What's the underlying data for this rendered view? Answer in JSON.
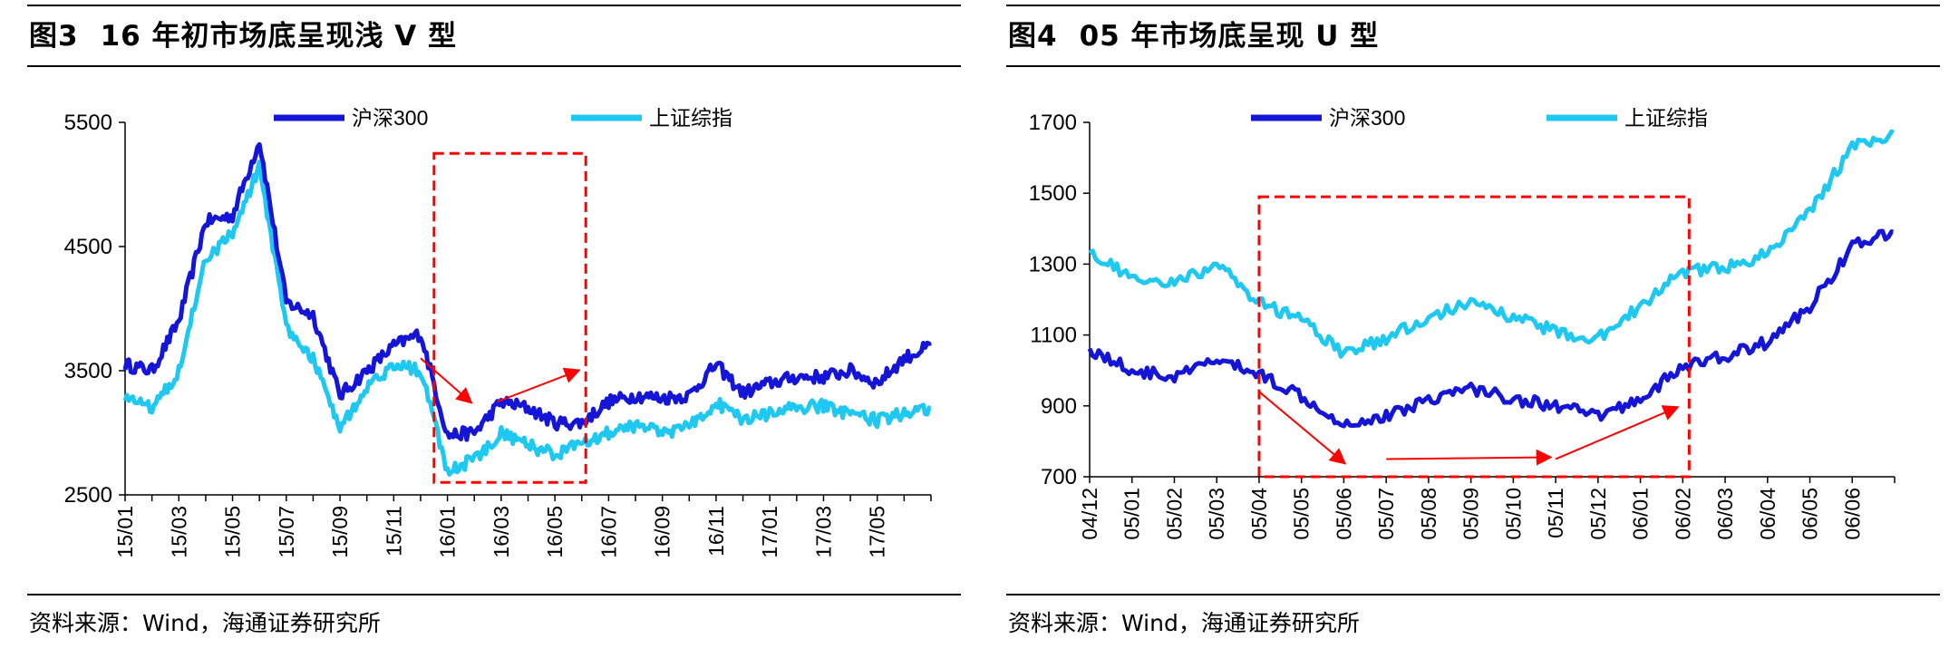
{
  "left": {
    "figure_num": "图3",
    "title": "16 年初市场底呈现浅 V 型",
    "source": "资料来源：Wind，海通证券研究所"
  },
  "right": {
    "figure_num": "图4",
    "title": "05 年市场底呈现 U 型",
    "source": "资料来源：Wind，海通证券研究所"
  },
  "colors": {
    "hs300": "#1515d8",
    "sh_index": "#1ec8f0",
    "annotation": "#ff0000"
  },
  "chart_data": [
    {
      "type": "line",
      "ylim": [
        2500,
        5500
      ],
      "yticks": [
        "5500",
        "4500",
        "3500",
        "2500"
      ],
      "ytick_values": [
        5500,
        4500,
        3500,
        2500
      ],
      "x_labels": [
        "15/01",
        "15/03",
        "15/05",
        "15/07",
        "15/09",
        "15/11",
        "16/01",
        "16/03",
        "16/05",
        "16/07",
        "16/09",
        "16/11",
        "17/01",
        "17/03",
        "17/05"
      ],
      "legend_position": "top",
      "grid": false,
      "highlight": {
        "x_range": [
          "15/12 (mid)",
          "16/06 (early)"
        ],
        "y_range": [
          2600,
          5250
        ]
      },
      "annotation_arrows": [
        {
          "from": [
            "15/12",
            3600
          ],
          "to": [
            "16/01 (late)",
            3250
          ]
        },
        {
          "from": [
            "16/02 (late)",
            3250
          ],
          "to": [
            "16/05 (late)",
            3500
          ]
        }
      ],
      "series": [
        {
          "name": "沪深300",
          "x": [
            "15/01",
            "15/02",
            "15/03",
            "15/04",
            "15/05",
            "15/06",
            "15/07",
            "15/08",
            "15/09",
            "15/10",
            "15/11",
            "15/12",
            "16/01",
            "16/02",
            "16/03",
            "16/04",
            "16/05",
            "16/06",
            "16/07",
            "16/08",
            "16/09",
            "16/10",
            "16/11",
            "16/12",
            "17/01",
            "17/02",
            "17/03",
            "17/04",
            "17/05",
            "17/06",
            "17/07"
          ],
          "values": [
            3550,
            3500,
            3900,
            4700,
            4750,
            5350,
            4050,
            3950,
            3300,
            3500,
            3700,
            3800,
            2980,
            3000,
            3250,
            3200,
            3080,
            3080,
            3250,
            3300,
            3280,
            3300,
            3550,
            3320,
            3400,
            3450,
            3450,
            3500,
            3400,
            3600,
            3700
          ]
        },
        {
          "name": "上证综指",
          "x": [
            "15/01",
            "15/02",
            "15/03",
            "15/04",
            "15/05",
            "15/06",
            "15/07",
            "15/08",
            "15/09",
            "15/10",
            "15/11",
            "15/12",
            "16/01",
            "16/02",
            "16/03",
            "16/04",
            "16/05",
            "16/06",
            "16/07",
            "16/08",
            "16/09",
            "16/10",
            "16/11",
            "16/12",
            "17/01",
            "17/02",
            "17/03",
            "17/04",
            "17/05",
            "17/06",
            "17/07"
          ],
          "values": [
            3300,
            3200,
            3500,
            4400,
            4600,
            5150,
            3850,
            3600,
            3050,
            3350,
            3550,
            3500,
            2700,
            2780,
            3000,
            2900,
            2820,
            2930,
            3000,
            3050,
            3000,
            3050,
            3250,
            3100,
            3150,
            3200,
            3220,
            3150,
            3100,
            3160,
            3200
          ]
        }
      ]
    },
    {
      "type": "line",
      "ylim": [
        700,
        1700
      ],
      "yticks": [
        "1700",
        "1500",
        "1300",
        "1100",
        "900",
        "700"
      ],
      "ytick_values": [
        1700,
        1500,
        1300,
        1100,
        900,
        700
      ],
      "x_labels": [
        "04/12",
        "05/01",
        "05/02",
        "05/03",
        "05/04",
        "05/05",
        "05/06",
        "05/07",
        "05/08",
        "05/09",
        "05/10",
        "05/11",
        "05/12",
        "06/01",
        "06/02",
        "06/03",
        "06/04",
        "06/05",
        "06/06"
      ],
      "legend_position": "top",
      "grid": false,
      "highlight": {
        "x_range": [
          "05/04",
          "06/02 (early)"
        ],
        "y_range": [
          700,
          1490
        ]
      },
      "annotation_arrows": [
        {
          "from": [
            "05/04",
            940
          ],
          "to": [
            "05/06",
            740
          ]
        },
        {
          "from": [
            "05/07",
            750
          ],
          "to": [
            "05/10 (late)",
            755
          ]
        },
        {
          "from": [
            "05/11",
            750
          ],
          "to": [
            "06/01 (late)",
            895
          ]
        }
      ],
      "series": [
        {
          "name": "沪深300",
          "x": [
            "04/12",
            "05/01",
            "05/02",
            "05/03",
            "05/04",
            "05/05",
            "05/06",
            "05/07",
            "05/08",
            "05/09",
            "05/10",
            "05/11",
            "05/12",
            "06/01",
            "06/02",
            "06/03",
            "06/04",
            "06/05",
            "06/06",
            "06/07"
          ],
          "values": [
            1060,
            1000,
            980,
            1030,
            990,
            930,
            850,
            870,
            920,
            950,
            920,
            900,
            870,
            920,
            1010,
            1040,
            1080,
            1180,
            1350,
            1390
          ]
        },
        {
          "name": "上证综指",
          "x": [
            "04/12",
            "05/01",
            "05/02",
            "05/03",
            "05/04",
            "05/05",
            "05/06",
            "05/07",
            "05/08",
            "05/09",
            "05/10",
            "05/11",
            "05/12",
            "06/01",
            "06/02",
            "06/03",
            "06/04",
            "06/05",
            "06/06",
            "06/07"
          ],
          "values": [
            1330,
            1260,
            1240,
            1300,
            1190,
            1140,
            1050,
            1090,
            1150,
            1190,
            1150,
            1110,
            1090,
            1180,
            1280,
            1290,
            1330,
            1450,
            1630,
            1670
          ]
        }
      ]
    }
  ]
}
